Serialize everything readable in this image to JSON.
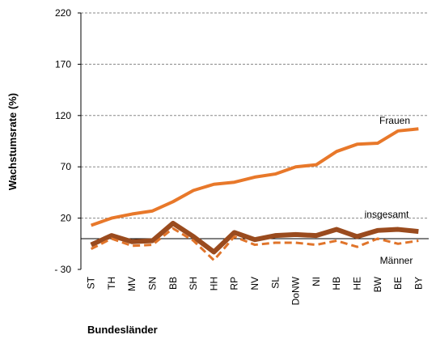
{
  "chart_data": {
    "type": "line",
    "y_label": "Wachstumsrate (%)",
    "x_label": "Bundesländer",
    "categories": [
      "ST",
      "TH",
      "MV",
      "SN",
      "BB",
      "SH",
      "HH",
      "RP",
      "NV",
      "SL",
      "DoNW",
      "NI",
      "HB",
      "HE",
      "BW",
      "BE",
      "BY"
    ],
    "series": [
      {
        "name": "Frauen",
        "color": "#e8782a",
        "dashed": false,
        "values": [
          13,
          20,
          24,
          27,
          36,
          47,
          53,
          55,
          60,
          63,
          70,
          72,
          85,
          92,
          93,
          105,
          107
        ]
      },
      {
        "name": "insgesamt",
        "color": "#9a4b1e",
        "dashed": false,
        "values": [
          -6,
          3,
          -3,
          -2,
          15,
          2,
          -13,
          6,
          -1,
          3,
          4,
          3,
          9,
          2,
          8,
          9,
          7
        ]
      },
      {
        "name": "Männer",
        "color": "#e0742a",
        "dashed": true,
        "values": [
          -10,
          0,
          -7,
          -6,
          10,
          -2,
          -21,
          2,
          -6,
          -4,
          -4,
          -6,
          -2,
          -8,
          0,
          -5,
          -2
        ]
      }
    ],
    "ylim": [
      -30,
      220
    ],
    "yticks": [
      {
        "value": -30,
        "label": "- 30"
      },
      20,
      70,
      120,
      170,
      220
    ],
    "grid": true
  }
}
